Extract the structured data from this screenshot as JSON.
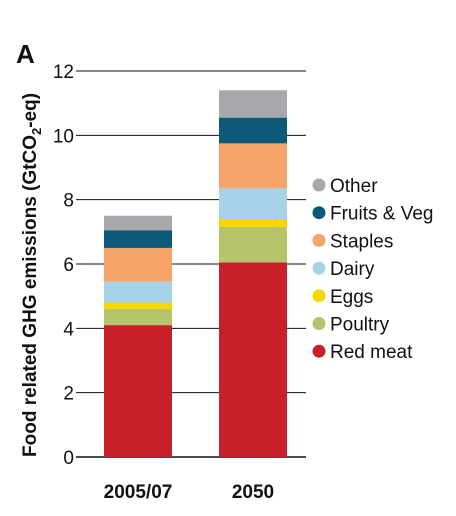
{
  "panel_label": "A",
  "chart_data": {
    "type": "bar",
    "stacked": true,
    "categories": [
      "2005/07",
      "2050"
    ],
    "ylabel_main": "Food related GHG emissions (GtCO",
    "ylabel_sub": "2",
    "ylabel_end": "-eq)",
    "ylim": [
      0,
      12
    ],
    "yticks": [
      "0",
      "2",
      "4",
      "6",
      "8",
      "10",
      "12"
    ],
    "grid": true,
    "legend_position": "right",
    "series": [
      {
        "name": "Red meat",
        "color": "#c8202a",
        "values": [
          4.1,
          6.05
        ]
      },
      {
        "name": "Poultry",
        "color": "#b5c46a",
        "values": [
          0.5,
          1.1
        ]
      },
      {
        "name": "Eggs",
        "color": "#f5d800",
        "values": [
          0.2,
          0.25
        ]
      },
      {
        "name": "Dairy",
        "color": "#a7d3e8",
        "values": [
          0.65,
          0.95
        ]
      },
      {
        "name": "Staples",
        "color": "#f7a46b",
        "values": [
          1.05,
          1.4
        ]
      },
      {
        "name": "Fruits & Veg",
        "color": "#0d5a78",
        "values": [
          0.55,
          0.8
        ]
      },
      {
        "name": "Other",
        "color": "#a7a8ac",
        "values": [
          0.45,
          0.85
        ]
      }
    ]
  }
}
